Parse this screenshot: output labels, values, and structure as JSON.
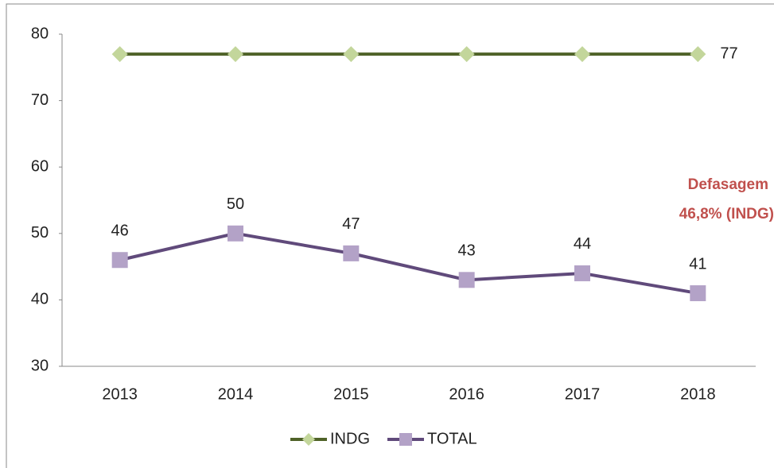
{
  "chart_data": {
    "type": "line",
    "categories": [
      "2013",
      "2014",
      "2015",
      "2016",
      "2017",
      "2018"
    ],
    "series": [
      {
        "name": "INDG",
        "color": "#4f6228",
        "marker": "diamond",
        "marker_color": "#c3d69b",
        "labels": "last",
        "values": [
          77,
          77,
          77,
          77,
          77,
          77
        ]
      },
      {
        "name": "TOTAL",
        "color": "#604a7b",
        "marker": "square",
        "marker_color": "#b3a2c7",
        "labels": "all",
        "values": [
          46,
          50,
          47,
          43,
          44,
          41
        ]
      }
    ],
    "ylim": [
      30,
      80
    ],
    "yticks": [
      30,
      40,
      50,
      60,
      70,
      80
    ],
    "grid": false,
    "annotation": [
      "Defasagem",
      "46,8% (INDG)"
    ],
    "legend": "bottom"
  }
}
